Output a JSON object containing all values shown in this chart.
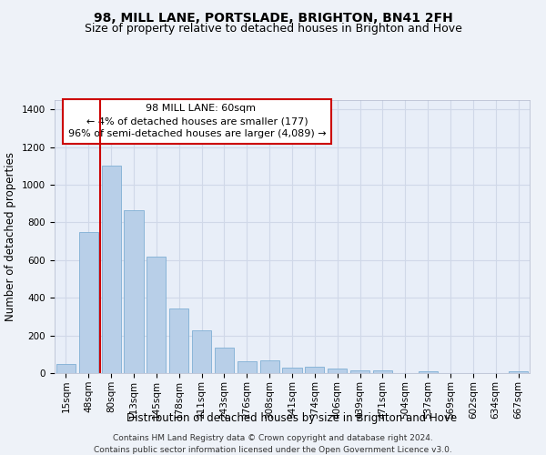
{
  "title": "98, MILL LANE, PORTSLADE, BRIGHTON, BN41 2FH",
  "subtitle": "Size of property relative to detached houses in Brighton and Hove",
  "xlabel": "Distribution of detached houses by size in Brighton and Hove",
  "ylabel": "Number of detached properties",
  "bar_labels": [
    "15sqm",
    "48sqm",
    "80sqm",
    "113sqm",
    "145sqm",
    "178sqm",
    "211sqm",
    "243sqm",
    "276sqm",
    "308sqm",
    "341sqm",
    "374sqm",
    "406sqm",
    "439sqm",
    "471sqm",
    "504sqm",
    "537sqm",
    "569sqm",
    "602sqm",
    "634sqm",
    "667sqm"
  ],
  "bar_values": [
    50,
    750,
    1100,
    865,
    620,
    345,
    225,
    135,
    65,
    70,
    30,
    35,
    22,
    15,
    15,
    0,
    12,
    0,
    0,
    0,
    12
  ],
  "bar_color": "#b8cfe8",
  "bar_edge_color": "#7fafd4",
  "red_line_color": "#cc0000",
  "red_line_x": 1.5,
  "annotation_title": "98 MILL LANE: 60sqm",
  "annotation_line1": "← 4% of detached houses are smaller (177)",
  "annotation_line2": "96% of semi-detached houses are larger (4,089) →",
  "annotation_box_color": "#ffffff",
  "annotation_border_color": "#cc0000",
  "ylim": [
    0,
    1450
  ],
  "yticks": [
    0,
    200,
    400,
    600,
    800,
    1000,
    1200,
    1400
  ],
  "footer1": "Contains HM Land Registry data © Crown copyright and database right 2024.",
  "footer2": "Contains public sector information licensed under the Open Government Licence v3.0.",
  "bg_color": "#eef2f8",
  "plot_bg_color": "#e8eef8",
  "grid_color": "#d0d8e8",
  "title_fontsize": 10,
  "subtitle_fontsize": 9,
  "axis_label_fontsize": 8.5,
  "tick_fontsize": 7.5,
  "annotation_fontsize": 8,
  "footer_fontsize": 6.5
}
